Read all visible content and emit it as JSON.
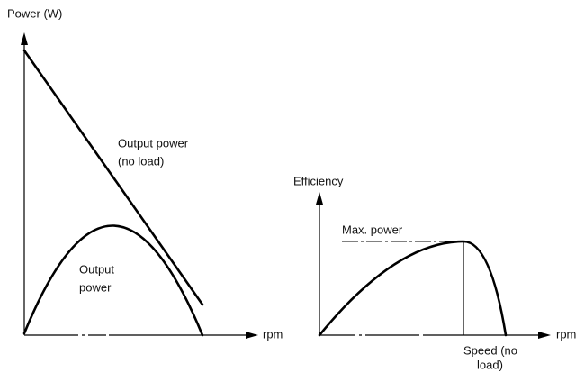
{
  "left_chart": {
    "y_axis_label": "Power  (W)",
    "x_axis_label": "rpm",
    "no_load_label": [
      "Output power",
      "(no load)"
    ],
    "output_label": [
      "Output",
      "power"
    ]
  },
  "right_chart": {
    "y_axis_label": "Efficiency",
    "x_axis_label": "rpm",
    "max_label": "Max. power",
    "speed_label": [
      "Speed (no",
      "load)"
    ]
  }
}
